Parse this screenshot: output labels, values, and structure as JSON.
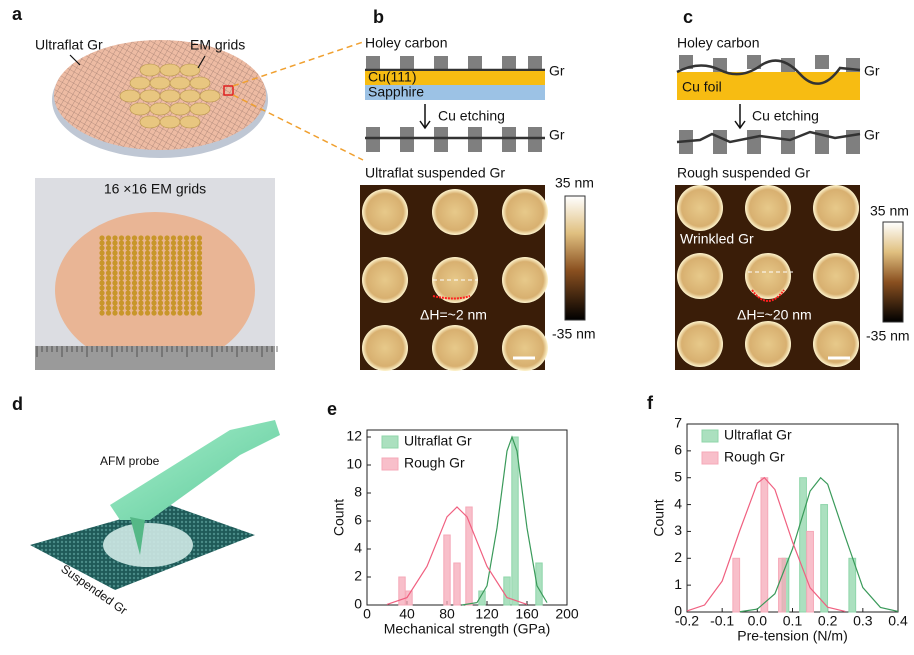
{
  "panels": {
    "a": {
      "label": "a",
      "ultraflat": "Ultraflat Gr",
      "grids": "EM grids",
      "photo_caption": "16 ×16 EM grids"
    },
    "b": {
      "label": "b",
      "holey": "Holey carbon",
      "layer1": "Cu(111)",
      "layer2": "Sapphire",
      "gr_top": "Gr",
      "etching": "Cu etching",
      "gr_bottom": "Gr",
      "image_title": "Ultraflat suspended Gr",
      "scale_max": "35 nm",
      "scale_min": "-35 nm",
      "height_diff": "ΔH=~2 nm"
    },
    "c": {
      "label": "c",
      "holey": "Holey carbon",
      "layer1": "Cu foil",
      "gr_top": "Gr",
      "etching": "Cu etching",
      "gr_bottom": "Gr",
      "image_title": "Rough suspended Gr",
      "wrinkled": "Wrinkled Gr",
      "scale_max": "35 nm",
      "scale_min": "-35 nm",
      "height_diff": "ΔH=~20 nm"
    },
    "d": {
      "label": "d",
      "probe": "AFM probe",
      "sample": "Suspended Gr"
    }
  },
  "chart_data": [
    {
      "type": "bar",
      "panel": "e",
      "x_label": "Mechanical strength (GPa)",
      "y_label": "Count",
      "xlim": [
        0,
        200
      ],
      "xticks": [
        0,
        40,
        80,
        120,
        160,
        200
      ],
      "ylim": [
        0,
        12.5
      ],
      "yticks": [
        0,
        2,
        4,
        6,
        8,
        10,
        12
      ],
      "legend": "upper left",
      "series": [
        {
          "name": "Ultraflat Gr",
          "color": "#8fd6aa",
          "x": [
            115,
            140,
            148,
            172
          ],
          "values": [
            1,
            2,
            12,
            3
          ]
        },
        {
          "name": "Rough Gr",
          "color": "#f6a9b8",
          "x": [
            35,
            42,
            80,
            90,
            102
          ],
          "values": [
            2,
            1,
            5,
            3,
            7
          ]
        }
      ],
      "fits": [
        {
          "color": "#3a9a5a",
          "x": [
            95,
            110,
            120,
            130,
            140,
            145,
            150,
            160,
            170,
            180
          ],
          "values": [
            0,
            0.17,
            1.37,
            5.5,
            11,
            12,
            11,
            5.5,
            1.37,
            0.17
          ]
        },
        {
          "color": "#f06080",
          "x": [
            20,
            40,
            60,
            80,
            90,
            100,
            120,
            140,
            160
          ],
          "values": [
            0.04,
            0.53,
            2.76,
            6.3,
            7,
            6.3,
            2.76,
            0.53,
            0.04
          ]
        }
      ]
    },
    {
      "type": "bar",
      "panel": "f",
      "x_label": "Pre-tension (N/m)",
      "y_label": "Count",
      "xlim": [
        -0.2,
        0.4
      ],
      "xticks": [
        -0.2,
        -0.1,
        {
          "value": 0,
          "label": "0.0"
        },
        0.1,
        0.2,
        0.3,
        0.4
      ],
      "ylim": [
        0,
        7
      ],
      "yticks": [
        0,
        1,
        2,
        3,
        4,
        5,
        6,
        7
      ],
      "legend": "upper left",
      "series": [
        {
          "name": "Ultraflat Gr",
          "color": "#8fd6aa",
          "x": [
            0.08,
            0.13,
            0.19,
            0.27
          ],
          "values": [
            2,
            5,
            4,
            2
          ]
        },
        {
          "name": "Rough Gr",
          "color": "#f6a9b8",
          "x": [
            -0.06,
            0.02,
            0.07,
            0.15
          ],
          "values": [
            2,
            5,
            2,
            3
          ]
        }
      ],
      "fits": [
        {
          "color": "#3a9a5a",
          "x": [
            -0.05,
            0,
            0.05,
            0.1,
            0.15,
            0.18,
            0.2,
            0.25,
            0.3,
            0.35,
            0.4
          ],
          "values": [
            0.01,
            0.11,
            0.68,
            2.35,
            4.5,
            5,
            4.76,
            2.8,
            0.91,
            0.17,
            0.02
          ]
        },
        {
          "color": "#f06080",
          "x": [
            -0.2,
            -0.15,
            -0.1,
            -0.05,
            0,
            0.02,
            0.05,
            0.1,
            0.15,
            0.2,
            0.25
          ],
          "values": [
            0.04,
            0.26,
            1.15,
            3.03,
            4.8,
            5,
            4.56,
            2.61,
            0.9,
            0.18,
            0.02
          ]
        }
      ]
    }
  ]
}
